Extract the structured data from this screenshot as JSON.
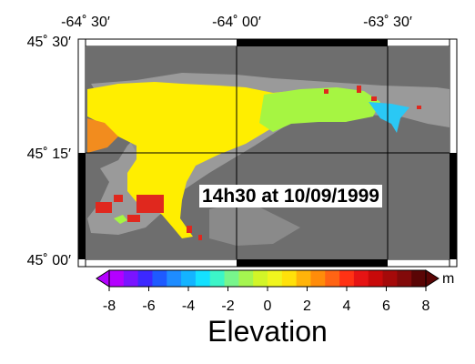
{
  "map": {
    "top_longitudes": [
      "-64˚ 30′",
      "-64˚ 00′",
      "-63˚ 30′"
    ],
    "left_latitudes": [
      "45˚ 30′",
      "45˚ 15′",
      "45˚ 00′"
    ],
    "timestamp": "14h30 at 10/09/1999",
    "colors": {
      "land": "#6e6e6e",
      "relief": "#9a9a9a",
      "water_high": "#ffee00",
      "water_mid": "#a6f542",
      "water_low": "#2ac8f5",
      "dry_flats": "#f28c1e",
      "red_spots": "#e0281e"
    }
  },
  "colorbar": {
    "min": -8,
    "max": 8,
    "tick_labels": [
      "-8",
      "-6",
      "-4",
      "-2",
      "0",
      "2",
      "4",
      "6",
      "8"
    ],
    "unit": "m",
    "title": "Elevation",
    "colors": [
      "#b400ff",
      "#7a14ff",
      "#3c28ff",
      "#1e5aff",
      "#1e8cff",
      "#14b4ff",
      "#14e1ff",
      "#3cf5c8",
      "#78f58c",
      "#a5f550",
      "#d2f528",
      "#f0f51e",
      "#ffe10a",
      "#ffb40a",
      "#ff8c0a",
      "#ff6414",
      "#ff3214",
      "#e61414",
      "#c80a0a",
      "#a50a0a",
      "#820a0a",
      "#5a0505"
    ]
  }
}
